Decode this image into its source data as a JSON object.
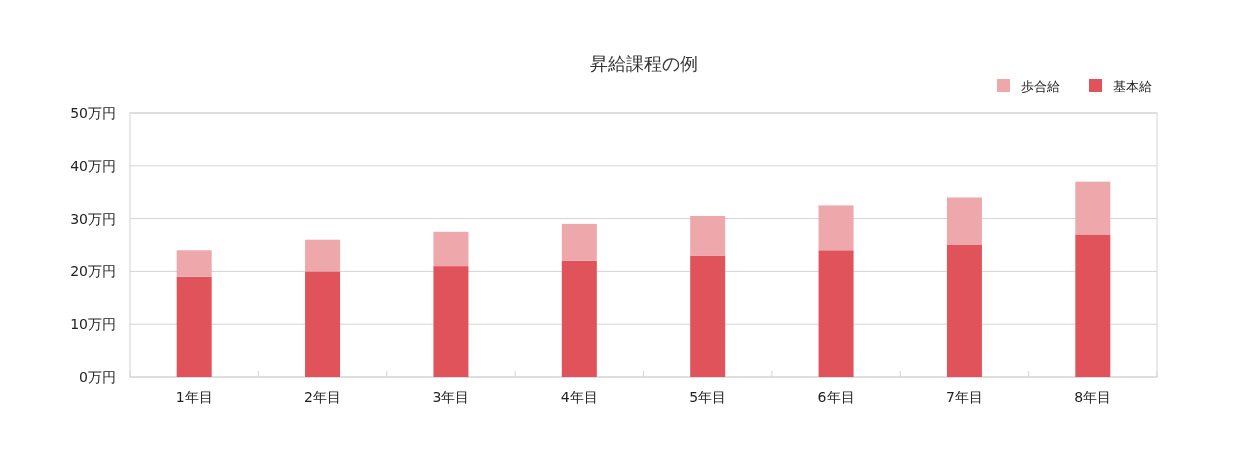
{
  "chart_data": {
    "type": "bar",
    "title": "昇給課程の例",
    "stacked": true,
    "legend": "top right",
    "grid": "y",
    "categories": [
      "1年目",
      "2年目",
      "3年目",
      "4年目",
      "5年目",
      "6年目",
      "7年目",
      "8年目"
    ],
    "series": [
      {
        "name": "基本給",
        "color": "#e0535a",
        "values": [
          19,
          20,
          21,
          22,
          23,
          24,
          25,
          27
        ]
      },
      {
        "name": "歩合給",
        "color": "#eea8ab",
        "values": [
          5,
          6,
          6.5,
          7,
          7.5,
          8.5,
          9,
          10
        ]
      }
    ],
    "ylim": [
      0,
      50
    ],
    "yticks": [
      {
        "value": 0,
        "label": "0万円"
      },
      {
        "value": 10,
        "label": "10万円"
      },
      {
        "value": 20,
        "label": "20万円"
      },
      {
        "value": 30,
        "label": "30万円"
      },
      {
        "value": 40,
        "label": "40万円"
      },
      {
        "value": 50,
        "label": "50万円"
      }
    ]
  }
}
